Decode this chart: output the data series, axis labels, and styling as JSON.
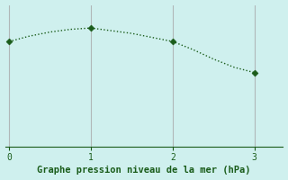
{
  "x": [
    0,
    0.25,
    0.5,
    0.75,
    1.0,
    1.25,
    1.5,
    1.75,
    2.0,
    2.25,
    2.5,
    2.75,
    3.0
  ],
  "y": [
    0.78,
    0.82,
    0.85,
    0.87,
    0.88,
    0.86,
    0.84,
    0.81,
    0.78,
    0.72,
    0.65,
    0.59,
    0.55
  ],
  "line_color": "#1a5c1a",
  "marker_points_x": [
    0,
    1.0,
    2.0,
    3.0
  ],
  "marker_points_y": [
    0.78,
    0.88,
    0.78,
    0.55
  ],
  "background_color": "#cff0ee",
  "vline_color": "#b0b8b8",
  "vlines_x": [
    0,
    1,
    2,
    3
  ],
  "xlabel": "Graphe pression niveau de la mer (hPa)",
  "xlabel_color": "#1a5c1a",
  "tick_color": "#1a5c1a",
  "xticks": [
    0,
    1,
    2,
    3
  ],
  "xlim": [
    -0.05,
    3.35
  ],
  "ylim": [
    0.0,
    1.05
  ],
  "xlabel_fontsize": 7.5,
  "tick_fontsize": 7,
  "line_width": 1.0,
  "marker_size": 3.5
}
